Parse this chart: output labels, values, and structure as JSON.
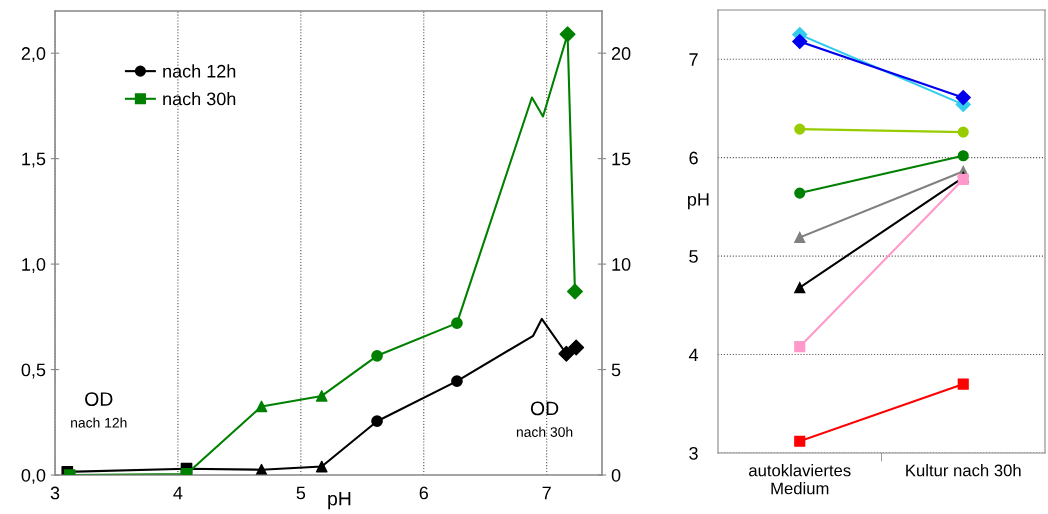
{
  "chart_data": [
    {
      "type": "line",
      "xlabel": "pH",
      "xlim": [
        3,
        7.45
      ],
      "xticks": [
        3,
        4,
        5,
        6,
        7
      ],
      "ylim": [
        0,
        2.2
      ],
      "yticks": [
        {
          "value": 0,
          "label": "0,0"
        },
        {
          "value": 0.5,
          "label": "0,5"
        },
        {
          "value": 1.0,
          "label": "1,0"
        },
        {
          "value": 1.5,
          "label": "1,5"
        },
        {
          "value": 2.0,
          "label": "2,0"
        }
      ],
      "y2lim": [
        0,
        22
      ],
      "y2ticks": [
        0,
        5,
        10,
        15,
        20
      ],
      "grid": "x",
      "legend": "top left",
      "line_style": "solid",
      "annotations": [
        "OD",
        "nach 12h",
        "OD",
        "nach 30h"
      ],
      "series": [
        {
          "name": "nach 12h",
          "type": "line",
          "marker": "none",
          "color": "#000000",
          "x": [
            3.1,
            4.07,
            4.68,
            5.17,
            5.62,
            6.27,
            6.89,
            6.96,
            7.16,
            7.24
          ],
          "values": [
            0.015,
            0.03,
            0.025,
            0.04,
            0.255,
            0.445,
            0.66,
            0.74,
            0.575,
            0.605
          ]
        },
        {
          "name": "nach 30h",
          "type": "line",
          "marker": "none",
          "axis": "y2",
          "color": "#008000",
          "x": [
            3.12,
            4.07,
            4.68,
            5.17,
            5.62,
            6.27,
            6.88,
            6.97,
            7.17,
            7.23
          ],
          "values": [
            0.0,
            0.05,
            3.25,
            3.75,
            5.65,
            7.2,
            17.9,
            17.0,
            20.9,
            8.7
          ]
        },
        {
          "type": "scatter",
          "marker": "circle",
          "color": "#000000",
          "x": [
            5.62,
            6.27
          ],
          "values": [
            0.255,
            0.445
          ]
        },
        {
          "type": "scatter",
          "marker": "square",
          "color": "#000000",
          "x": [
            3.1,
            4.07
          ],
          "values": [
            0.015,
            0.03
          ]
        },
        {
          "type": "scatter",
          "marker": "triangle",
          "color": "#000000",
          "x": [
            4.68,
            5.17
          ],
          "values": [
            0.025,
            0.04
          ]
        },
        {
          "type": "scatter",
          "marker": "diamond",
          "color": "#000000",
          "x": [
            7.16,
            7.24
          ],
          "values": [
            0.575,
            0.605
          ]
        },
        {
          "type": "scatter",
          "marker": "square",
          "axis": "y2",
          "color": "#008000",
          "x": [
            3.12,
            4.07
          ],
          "values": [
            0.0,
            0.05
          ]
        },
        {
          "type": "scatter",
          "marker": "triangle",
          "axis": "y2",
          "color": "#008000",
          "x": [
            4.68,
            5.17
          ],
          "values": [
            3.25,
            3.75
          ]
        },
        {
          "type": "scatter",
          "marker": "circle",
          "axis": "y2",
          "color": "#008000",
          "x": [
            5.62,
            6.27
          ],
          "values": [
            5.65,
            7.2
          ]
        },
        {
          "type": "scatter",
          "marker": "diamond",
          "axis": "y2",
          "color": "#008000",
          "x": [
            7.17,
            7.23
          ],
          "values": [
            20.9,
            8.7
          ]
        }
      ]
    },
    {
      "type": "line",
      "ylabel": "pH",
      "categories": [
        "autoklaviertes\nMedium",
        "Kultur nach 30h"
      ],
      "ylim": [
        3,
        7.5
      ],
      "yticks": [
        3,
        4,
        5,
        6,
        7
      ],
      "grid": "y",
      "legend": false,
      "line_style": "solid",
      "series": [
        {
          "color": "#33ccee",
          "marker": "diamond",
          "values": [
            7.25,
            6.54
          ]
        },
        {
          "color": "#0000ee",
          "marker": "diamond",
          "values": [
            7.18,
            6.61
          ]
        },
        {
          "color": "#99cc00",
          "marker": "circle",
          "values": [
            6.29,
            6.26
          ]
        },
        {
          "color": "#008000",
          "marker": "circle",
          "values": [
            5.64,
            6.02
          ]
        },
        {
          "color": "#808080",
          "marker": "triangle",
          "values": [
            5.19,
            5.86
          ]
        },
        {
          "color": "#000000",
          "marker": "triangle",
          "values": [
            4.68,
            5.8
          ]
        },
        {
          "color": "#ff99cc",
          "marker": "square",
          "values": [
            4.08,
            5.78
          ]
        },
        {
          "color": "#ff0000",
          "marker": "square",
          "values": [
            3.12,
            3.7
          ]
        }
      ]
    }
  ]
}
